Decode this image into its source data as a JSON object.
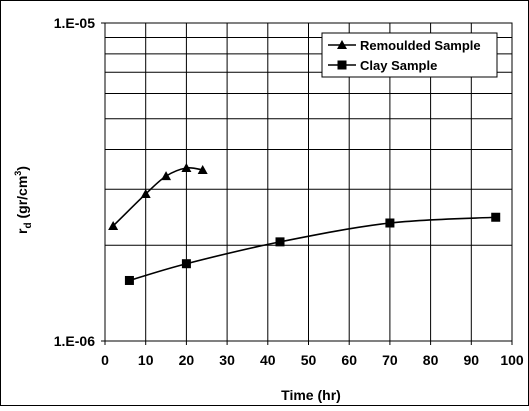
{
  "chart_data": {
    "type": "line",
    "title": "",
    "xlabel": "Time (hr)",
    "ylabel_main": "r",
    "ylabel_sub": "d",
    "ylabel_unit": "(gr/cm",
    "ylabel_sup": "3",
    "ylabel_close": ")",
    "xlim": [
      0,
      100
    ],
    "ylim": [
      1e-06,
      1e-05
    ],
    "y_scale": "log",
    "grid": true,
    "legend_position": "top-right",
    "x_ticks": [
      "0",
      "10",
      "20",
      "30",
      "40",
      "50",
      "60",
      "70",
      "80",
      "90",
      "100"
    ],
    "y_tick_labels": [
      {
        "value": 1e-05,
        "label": "1.E-05"
      },
      {
        "value": 1e-06,
        "label": "1.E-06"
      }
    ],
    "series": [
      {
        "name": "Remoulded Sample",
        "marker": "triangle",
        "color": "#000000",
        "x": [
          2,
          10,
          15,
          20,
          24
        ],
        "y": [
          2.3e-06,
          2.9e-06,
          3.3e-06,
          3.5e-06,
          3.45e-06
        ]
      },
      {
        "name": "Clay Sample",
        "marker": "square",
        "color": "#000000",
        "x": [
          6,
          20,
          43,
          70,
          96
        ],
        "y": [
          1.55e-06,
          1.75e-06,
          2.05e-06,
          2.35e-06,
          2.45e-06
        ]
      }
    ]
  }
}
